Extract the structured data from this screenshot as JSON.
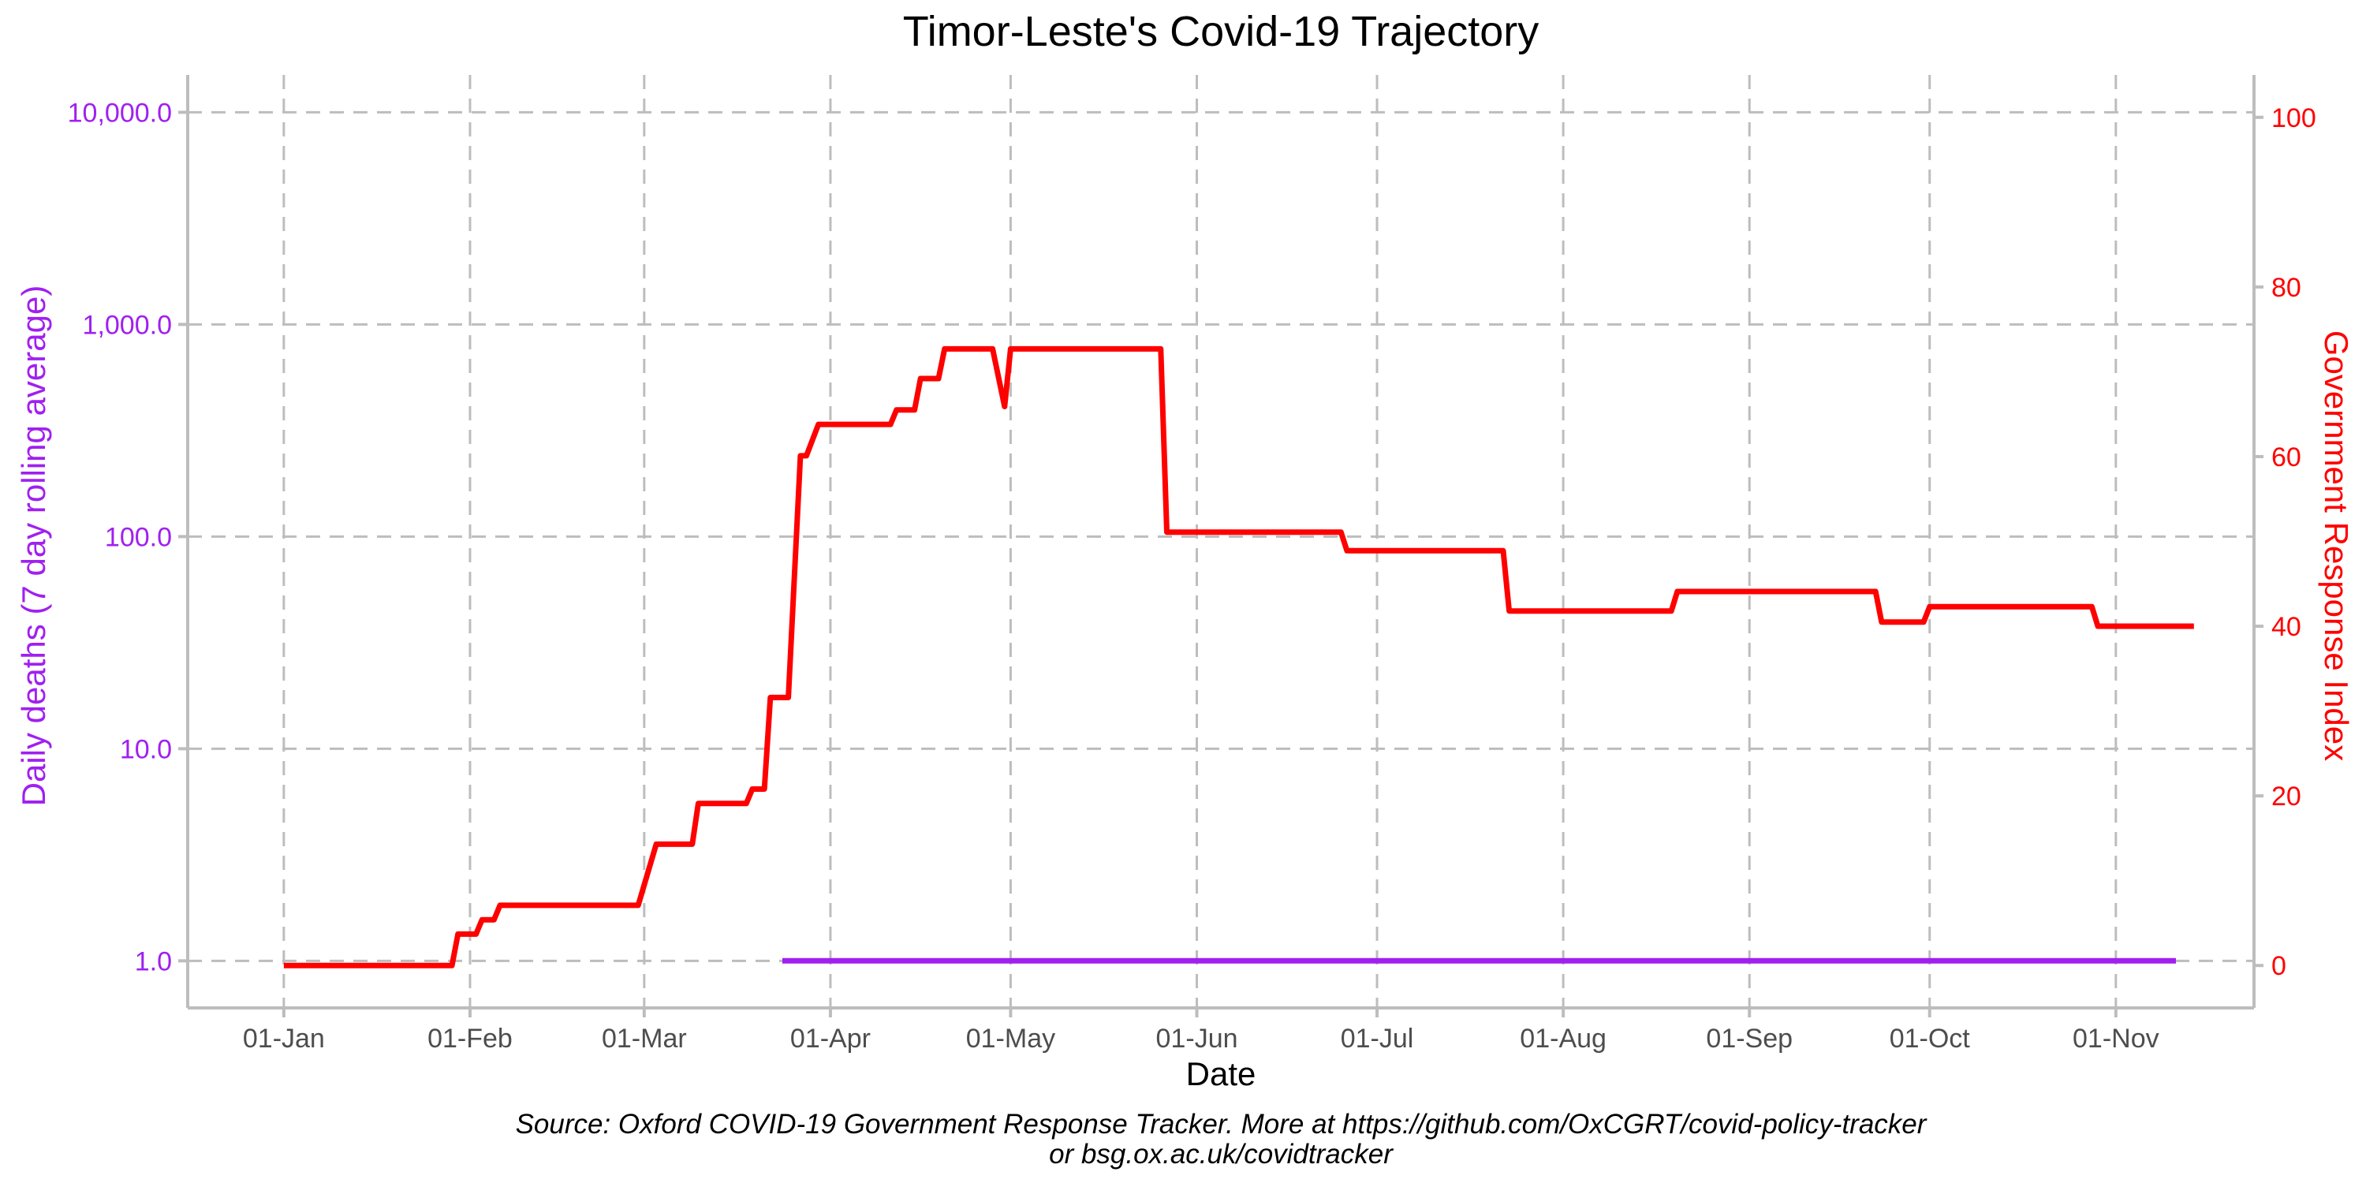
{
  "chart_data": {
    "type": "line",
    "title": "Timor-Leste's Covid-19 Trajectory",
    "xlabel": "Date",
    "ylabel_left": "Daily deaths (7 day rolling average)",
    "ylabel_right": "Government Response Index",
    "caption_line1": "Source: Oxford COVID-19 Government Response Tracker. More at https://github.com/OxCGRT/covid-policy-tracker",
    "caption_line2": "or bsg.ox.ac.uk/covidtracker",
    "x_range": [
      "2019-12-16",
      "2020-11-24"
    ],
    "x_ticks": [
      {
        "date": "2020-01-01",
        "label": "01-Jan"
      },
      {
        "date": "2020-02-01",
        "label": "01-Feb"
      },
      {
        "date": "2020-03-01",
        "label": "01-Mar"
      },
      {
        "date": "2020-04-01",
        "label": "01-Apr"
      },
      {
        "date": "2020-05-01",
        "label": "01-May"
      },
      {
        "date": "2020-06-01",
        "label": "01-Jun"
      },
      {
        "date": "2020-07-01",
        "label": "01-Jul"
      },
      {
        "date": "2020-08-01",
        "label": "01-Aug"
      },
      {
        "date": "2020-09-01",
        "label": "01-Sep"
      },
      {
        "date": "2020-10-01",
        "label": "01-Oct"
      },
      {
        "date": "2020-11-01",
        "label": "01-Nov"
      }
    ],
    "y_left": {
      "scale": "log",
      "range": [
        0.6,
        15000
      ],
      "ticks": [
        {
          "value": 1,
          "label": "1.0"
        },
        {
          "value": 10,
          "label": "10.0"
        },
        {
          "value": 100,
          "label": "100.0"
        },
        {
          "value": 1000,
          "label": "1,000.0"
        },
        {
          "value": 10000,
          "label": "10,000.0"
        }
      ]
    },
    "y_right": {
      "scale": "linear",
      "range": [
        -5,
        105
      ],
      "ticks": [
        {
          "value": 0,
          "label": "0"
        },
        {
          "value": 20,
          "label": "20"
        },
        {
          "value": 40,
          "label": "40"
        },
        {
          "value": 60,
          "label": "60"
        },
        {
          "value": 80,
          "label": "80"
        },
        {
          "value": 100,
          "label": "100"
        }
      ]
    },
    "grid": true,
    "series": [
      {
        "axis": "right",
        "color": "#ff0000",
        "points": [
          [
            "2020-01-01",
            0
          ],
          [
            "2020-01-29",
            0
          ],
          [
            "2020-01-30",
            3.7
          ],
          [
            "2020-02-02",
            3.7
          ],
          [
            "2020-02-03",
            5.4
          ],
          [
            "2020-02-05",
            5.4
          ],
          [
            "2020-02-06",
            7.1
          ],
          [
            "2020-02-29",
            7.1
          ],
          [
            "2020-03-03",
            14.3
          ],
          [
            "2020-03-09",
            14.3
          ],
          [
            "2020-03-10",
            19.1
          ],
          [
            "2020-03-18",
            19.1
          ],
          [
            "2020-03-19",
            20.8
          ],
          [
            "2020-03-21",
            20.8
          ],
          [
            "2020-03-22",
            31.6
          ],
          [
            "2020-03-25",
            31.6
          ],
          [
            "2020-03-27",
            60.1
          ],
          [
            "2020-03-28",
            60.1
          ],
          [
            "2020-03-30",
            63.8
          ],
          [
            "2020-04-11",
            63.8
          ],
          [
            "2020-04-12",
            65.5
          ],
          [
            "2020-04-15",
            65.5
          ],
          [
            "2020-04-16",
            69.2
          ],
          [
            "2020-04-19",
            69.2
          ],
          [
            "2020-04-20",
            72.7
          ],
          [
            "2020-04-28",
            72.7
          ],
          [
            "2020-04-30",
            65.9
          ],
          [
            "2020-05-01",
            72.7
          ],
          [
            "2020-05-26",
            72.7
          ],
          [
            "2020-05-27",
            51.1
          ],
          [
            "2020-06-25",
            51.1
          ],
          [
            "2020-06-26",
            48.9
          ],
          [
            "2020-07-22",
            48.9
          ],
          [
            "2020-07-23",
            41.8
          ],
          [
            "2020-08-19",
            41.8
          ],
          [
            "2020-08-20",
            44.1
          ],
          [
            "2020-09-22",
            44.1
          ],
          [
            "2020-09-23",
            40.5
          ],
          [
            "2020-09-30",
            40.5
          ],
          [
            "2020-10-01",
            42.3
          ],
          [
            "2020-10-28",
            42.3
          ],
          [
            "2020-10-29",
            40.0
          ],
          [
            "2020-11-14",
            40.0
          ]
        ]
      },
      {
        "axis": "left",
        "color": "#a020f0",
        "points": [
          [
            "2020-03-24",
            1
          ],
          [
            "2020-11-11",
            1
          ]
        ]
      }
    ]
  },
  "colors": {
    "left_axis": "#a020f0",
    "right_axis": "#ff0000",
    "grid": "#bdbdbd"
  }
}
